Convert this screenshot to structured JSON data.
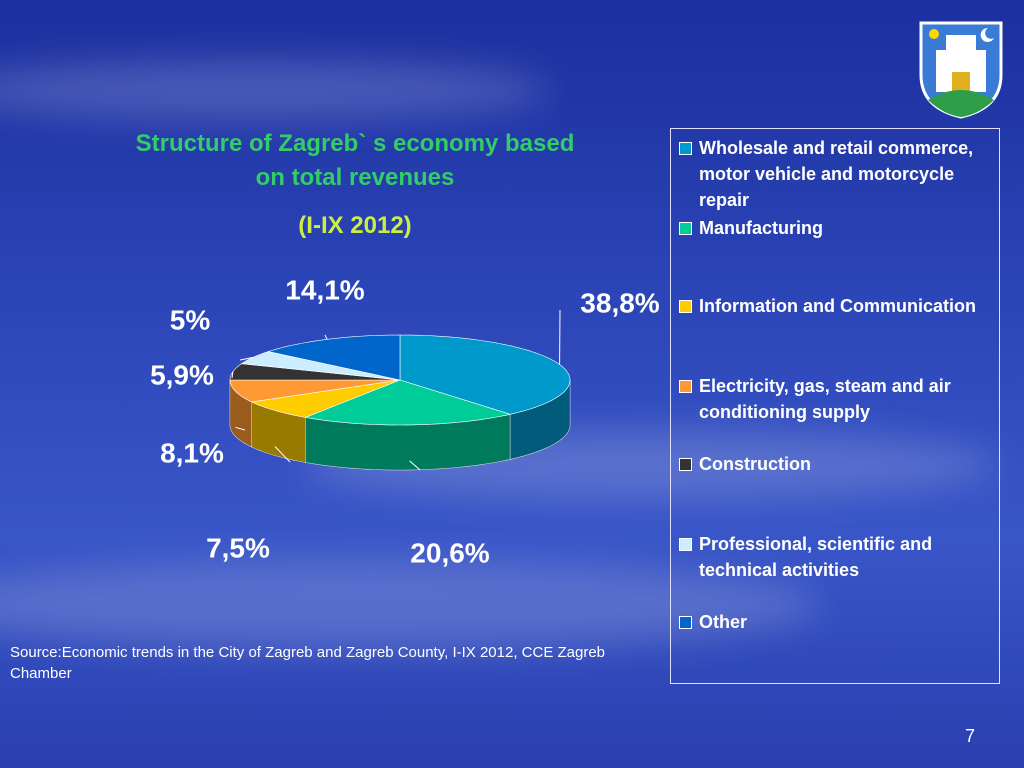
{
  "chart_data": {
    "type": "pie3d",
    "title": "Structure of Zagreb` s economy based on total revenues",
    "subtitle": "(I-IX 2012)",
    "categories": [
      "Wholesale and retail commerce, motor vehicle and motorcycle repair",
      "Manufacturing",
      "Information and Communication",
      "Electricity, gas, steam and air conditioning supply",
      "Construction",
      "Professional, scientific and technical activities",
      "Other"
    ],
    "values": [
      38.8,
      20.6,
      7.5,
      8.1,
      5.9,
      5,
      14.1
    ],
    "value_labels": [
      "38,8%",
      "20,6%",
      "7,5%",
      "8,1%",
      "5,9%",
      "5%",
      "14,1%"
    ],
    "colors": [
      "#0099cc",
      "#00cc99",
      "#ffcc00",
      "#ff9933",
      "#333333",
      "#ccecff",
      "#0066cc"
    ],
    "legend": "right"
  },
  "source": "Source:Economic trends in the City of Zagreb and Zagreb County, I-IX 2012, CCE Zagreb Chamber",
  "page_number": "7"
}
